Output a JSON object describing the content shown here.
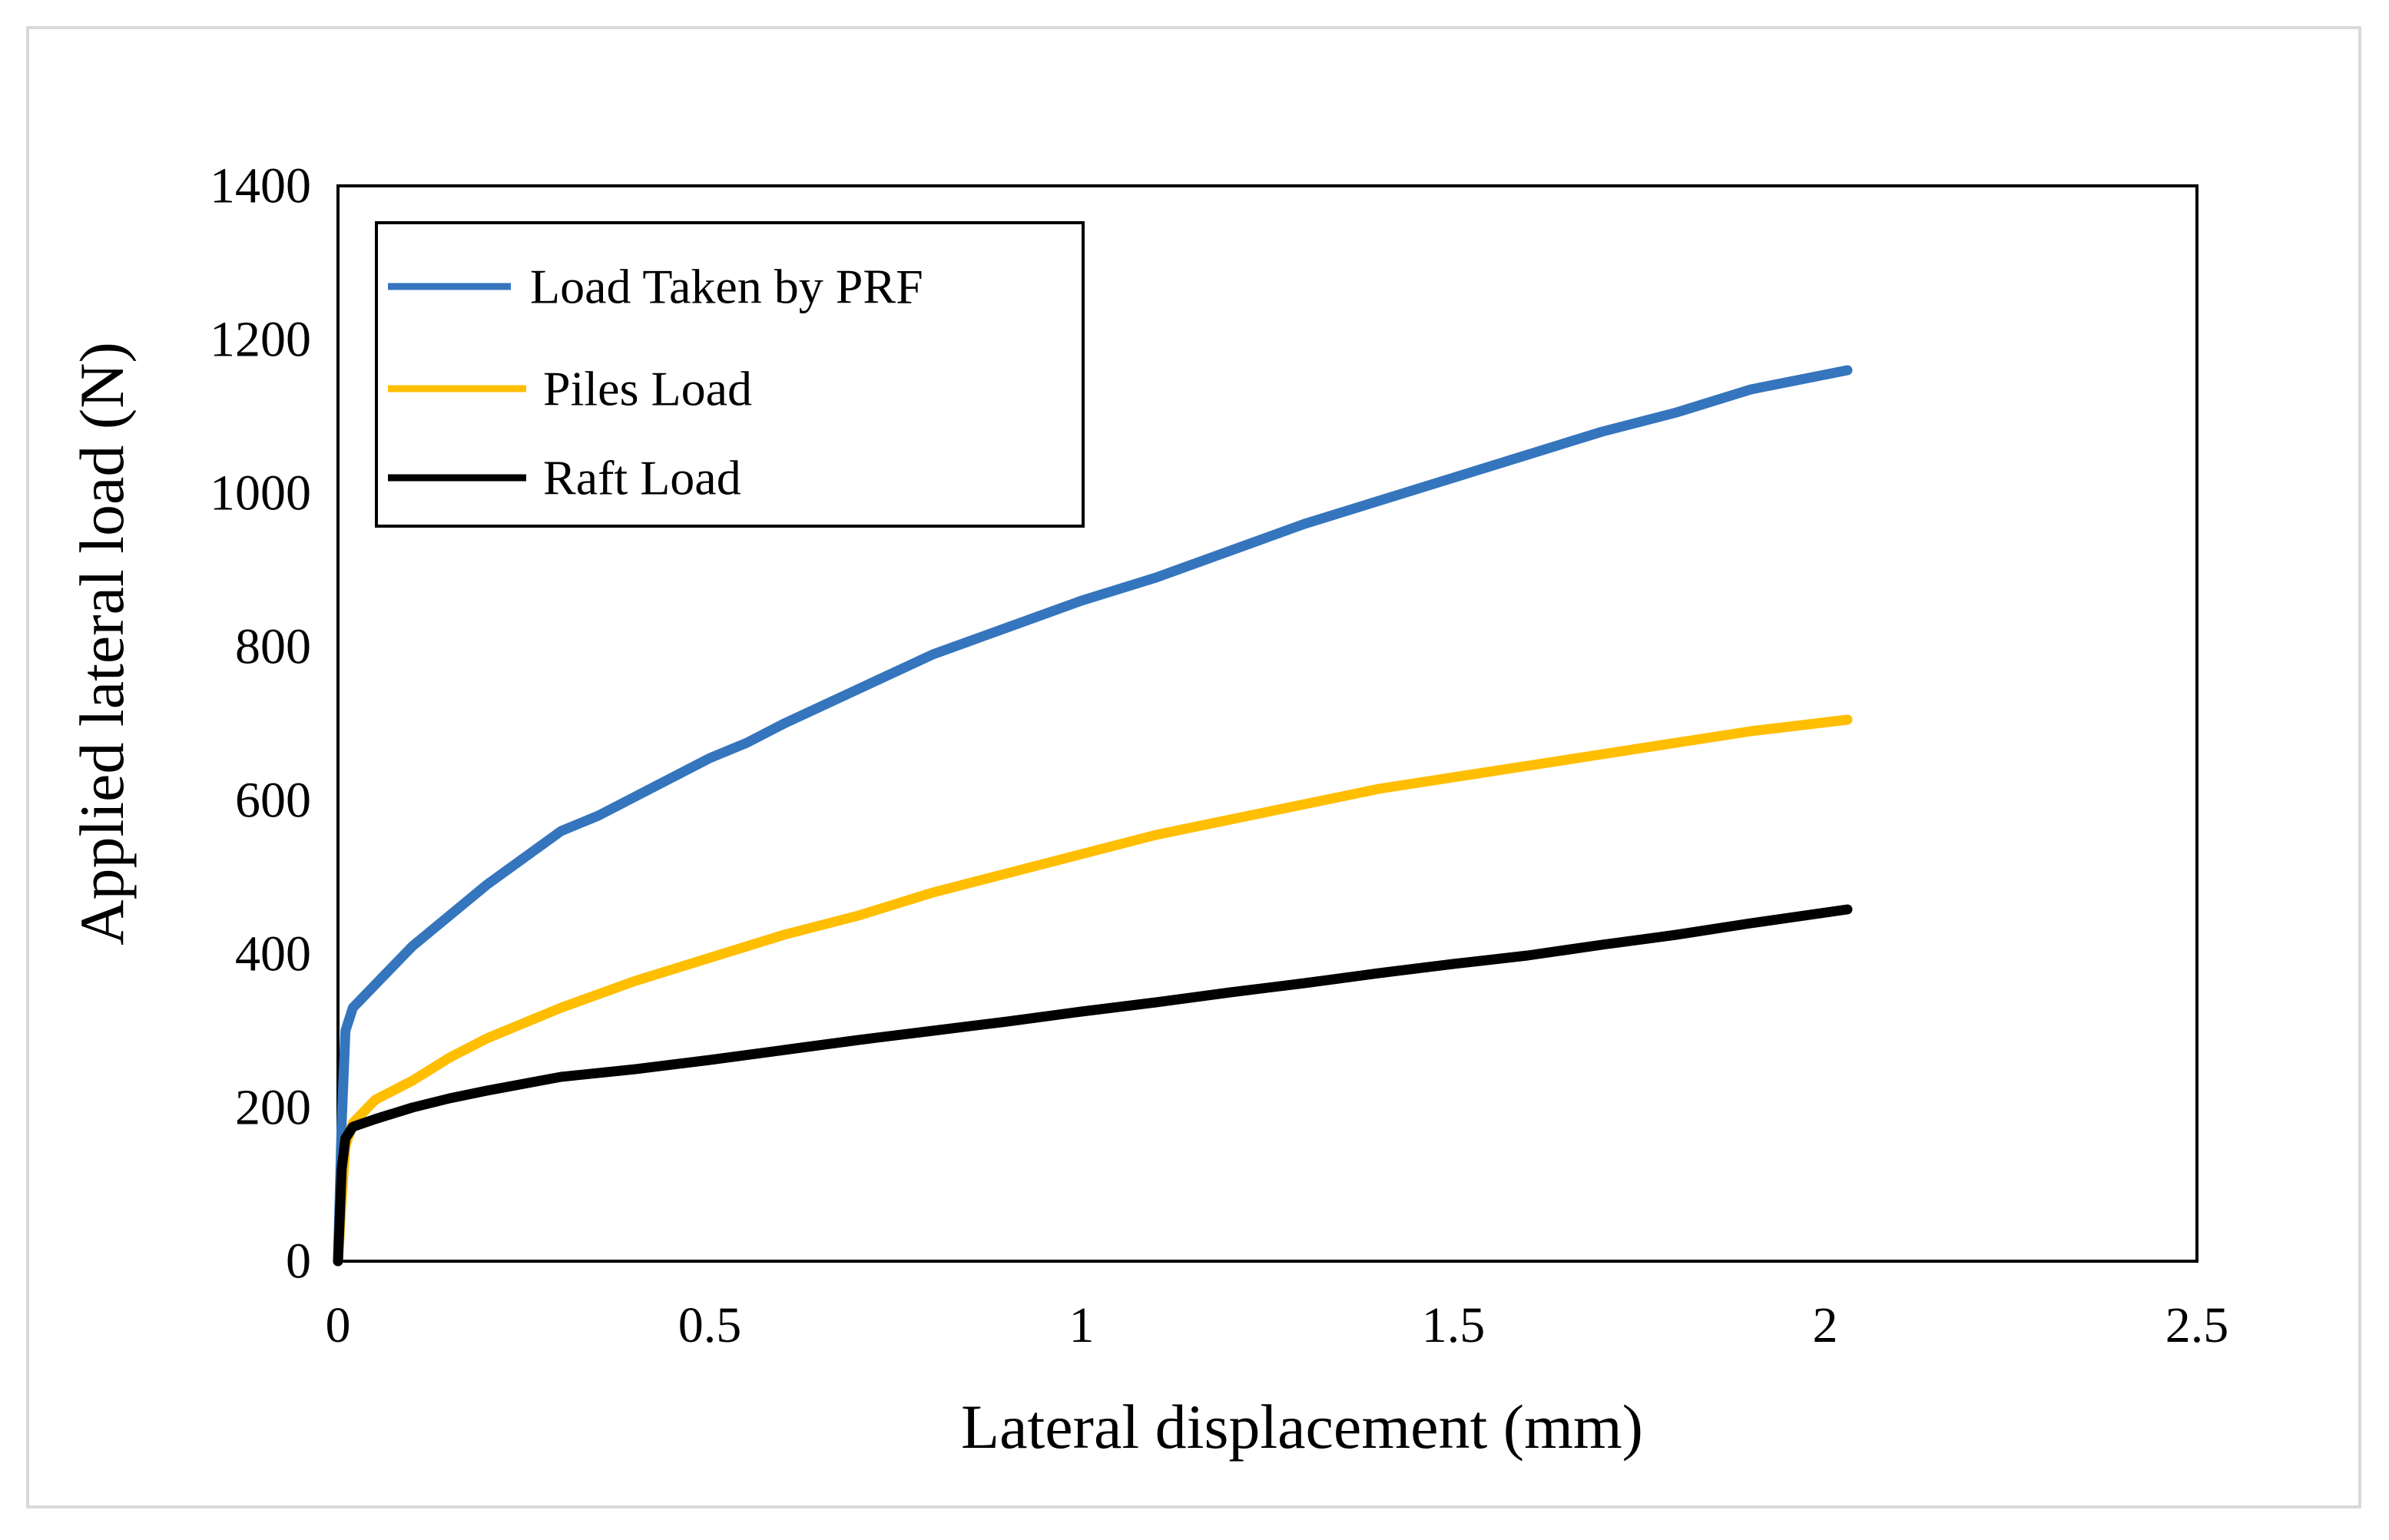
{
  "chart_data": {
    "type": "line",
    "title": "",
    "xlabel": "Lateral displacement (mm)",
    "ylabel": "Applied lateral load (N)",
    "xlim": [
      0,
      2.5
    ],
    "ylim": [
      0,
      1400
    ],
    "x_ticks": [
      0,
      0.5,
      1,
      1.5,
      2,
      2.5
    ],
    "x_tick_labels": [
      "0",
      "0.5",
      "1",
      "1.5",
      "2",
      "2.5"
    ],
    "y_ticks": [
      0,
      200,
      400,
      600,
      800,
      1000,
      1200,
      1400
    ],
    "y_tick_labels": [
      "0",
      "200",
      "400",
      "600",
      "800",
      "1000",
      "1200",
      "1400"
    ],
    "grid": false,
    "legend_position": "top-left",
    "series": [
      {
        "name": "Load Taken by PRF",
        "color": "#3575BD",
        "x": [
          0,
          0.005,
          0.01,
          0.02,
          0.05,
          0.08,
          0.1,
          0.15,
          0.2,
          0.25,
          0.3,
          0.35,
          0.4,
          0.45,
          0.5,
          0.55,
          0.6,
          0.7,
          0.8,
          0.9,
          1.0,
          1.1,
          1.2,
          1.3,
          1.4,
          1.5,
          1.6,
          1.7,
          1.8,
          1.9,
          2.03
        ],
        "y": [
          0,
          180,
          300,
          330,
          360,
          390,
          410,
          450,
          490,
          525,
          560,
          580,
          605,
          630,
          655,
          675,
          700,
          745,
          790,
          825,
          860,
          890,
          925,
          960,
          990,
          1020,
          1050,
          1080,
          1105,
          1135,
          1160
        ]
      },
      {
        "name": "Piles Load",
        "color": "#FFBE00",
        "x": [
          0,
          0.005,
          0.01,
          0.02,
          0.05,
          0.1,
          0.15,
          0.2,
          0.25,
          0.3,
          0.4,
          0.5,
          0.6,
          0.7,
          0.8,
          0.9,
          1.0,
          1.1,
          1.2,
          1.3,
          1.4,
          1.5,
          1.6,
          1.7,
          1.8,
          1.9,
          2.03
        ],
        "y": [
          0,
          80,
          150,
          180,
          210,
          235,
          265,
          290,
          310,
          330,
          365,
          395,
          425,
          450,
          480,
          505,
          530,
          555,
          575,
          595,
          615,
          630,
          645,
          660,
          675,
          690,
          705
        ]
      },
      {
        "name": "Raft Load",
        "color": "#000000",
        "x": [
          0,
          0.005,
          0.01,
          0.02,
          0.05,
          0.1,
          0.15,
          0.2,
          0.3,
          0.4,
          0.5,
          0.6,
          0.7,
          0.8,
          0.9,
          1.0,
          1.1,
          1.2,
          1.3,
          1.4,
          1.5,
          1.6,
          1.7,
          1.8,
          1.9,
          2.03
        ],
        "y": [
          0,
          120,
          160,
          175,
          185,
          200,
          212,
          222,
          240,
          250,
          262,
          275,
          288,
          300,
          312,
          325,
          337,
          350,
          362,
          375,
          387,
          398,
          412,
          425,
          440,
          458
        ]
      }
    ]
  }
}
